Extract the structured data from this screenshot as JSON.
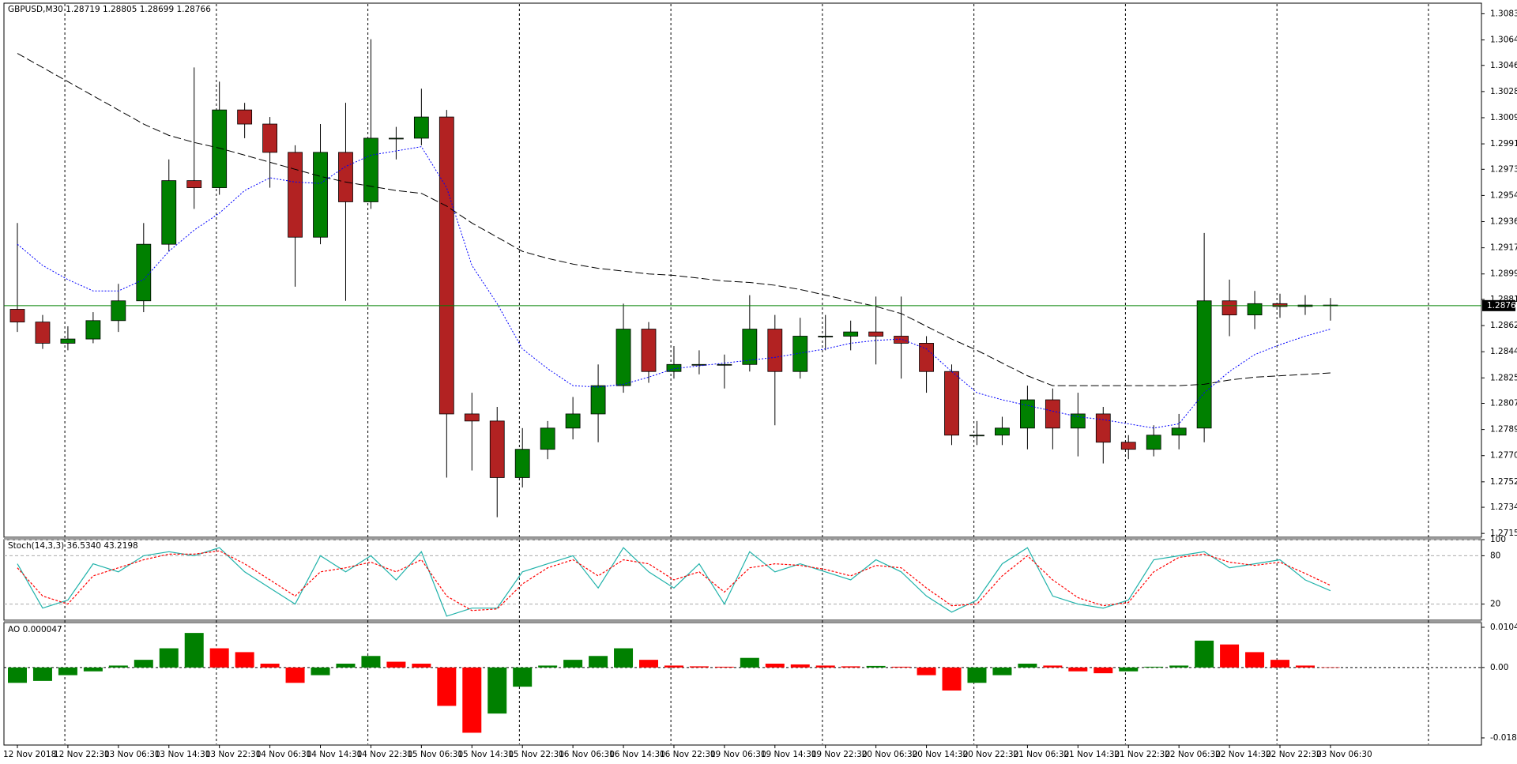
{
  "chart_data": [
    {
      "type": "candlestick",
      "title": "GBPUSD,M30  1.28719 1.28805 1.28699 1.28766",
      "ylim": [
        1.27128,
        1.30905
      ],
      "yticks": [
        {
          "value": 1.3083,
          "label": "1.30830"
        },
        {
          "value": 1.30645,
          "label": "1.30645"
        },
        {
          "value": 1.30465,
          "label": "1.30465"
        },
        {
          "value": 1.3028,
          "label": "1.30280"
        },
        {
          "value": 1.30095,
          "label": "1.30095"
        },
        {
          "value": 1.2991,
          "label": "1.29910"
        },
        {
          "value": 1.2973,
          "label": "1.29730"
        },
        {
          "value": 1.29545,
          "label": "1.29545"
        },
        {
          "value": 1.2936,
          "label": "1.29360"
        },
        {
          "value": 1.29175,
          "label": "1.29175"
        },
        {
          "value": 1.2899,
          "label": "1.28990"
        },
        {
          "value": 1.2881,
          "label": "1.28810"
        },
        {
          "value": 1.28625,
          "label": "1.28625"
        },
        {
          "value": 1.2844,
          "label": "1.28440"
        },
        {
          "value": 1.28255,
          "label": "1.28255"
        },
        {
          "value": 1.28075,
          "label": "1.28075"
        },
        {
          "value": 1.2789,
          "label": "1.27890"
        },
        {
          "value": 1.27705,
          "label": "1.27705"
        },
        {
          "value": 1.2752,
          "label": "1.27520"
        },
        {
          "value": 1.2734,
          "label": "1.27340"
        },
        {
          "value": 1.27155,
          "label": "1.27155"
        }
      ],
      "last_price": 1.28766,
      "xticks": [
        {
          "value": 0,
          "label": "12 Nov 2018"
        },
        {
          "value": 2,
          "label": "12 Nov 22:30"
        },
        {
          "value": 4,
          "label": "13 Nov 06:30"
        },
        {
          "value": 6,
          "label": "13 Nov 14:30"
        },
        {
          "value": 8,
          "label": "13 Nov 22:30"
        },
        {
          "value": 10,
          "label": "14 Nov 06:30"
        },
        {
          "value": 12,
          "label": "14 Nov 14:30"
        },
        {
          "value": 14,
          "label": "14 Nov 22:30"
        },
        {
          "value": 16,
          "label": "15 Nov 06:30"
        },
        {
          "value": 18,
          "label": "15 Nov 14:30"
        },
        {
          "value": 20,
          "label": "15 Nov 22:30"
        },
        {
          "value": 22,
          "label": "16 Nov 06:30"
        },
        {
          "value": 24,
          "label": "16 Nov 14:30"
        },
        {
          "value": 26,
          "label": "16 Nov 22:30"
        },
        {
          "value": 28,
          "label": "19 Nov 06:30"
        },
        {
          "value": 30,
          "label": "19 Nov 14:30"
        },
        {
          "value": 32,
          "label": "19 Nov 22:30"
        },
        {
          "value": 34,
          "label": "20 Nov 06:30"
        },
        {
          "value": 36,
          "label": "20 Nov 14:30"
        },
        {
          "value": 38,
          "label": "20 Nov 22:30"
        },
        {
          "value": 40,
          "label": "21 Nov 06:30"
        },
        {
          "value": 42,
          "label": "21 Nov 14:30"
        },
        {
          "value": 44,
          "label": "21 Nov 22:30"
        },
        {
          "value": 46,
          "label": "22 Nov 06:30"
        },
        {
          "value": 48,
          "label": "22 Nov 14:30"
        },
        {
          "value": 50,
          "label": "22 Nov 22:30"
        },
        {
          "value": 52,
          "label": "23 Nov 06:30"
        }
      ],
      "up_color": "#008000",
      "down_color": "#b22222",
      "candles": [
        [
          1.2874,
          1.2935,
          1.2858,
          1.2865
        ],
        [
          1.2865,
          1.287,
          1.2846,
          1.285
        ],
        [
          1.285,
          1.2862,
          1.2845,
          1.2853
        ],
        [
          1.2853,
          1.2872,
          1.285,
          1.2866
        ],
        [
          1.2866,
          1.2892,
          1.2858,
          1.288
        ],
        [
          1.288,
          1.2935,
          1.2872,
          1.292
        ],
        [
          1.292,
          1.298,
          1.2915,
          1.2965
        ],
        [
          1.2965,
          1.3045,
          1.2945,
          1.296
        ],
        [
          1.296,
          1.3035,
          1.2955,
          1.3015
        ],
        [
          1.3015,
          1.302,
          1.2995,
          1.3005
        ],
        [
          1.3005,
          1.301,
          1.296,
          1.2985
        ],
        [
          1.2985,
          1.299,
          1.289,
          1.2925
        ],
        [
          1.2925,
          1.3005,
          1.292,
          1.2985
        ],
        [
          1.2985,
          1.302,
          1.288,
          1.295
        ],
        [
          1.295,
          1.3065,
          1.2945,
          1.2995
        ],
        [
          1.2995,
          1.3003,
          1.298,
          1.2995
        ],
        [
          1.2995,
          1.303,
          1.299,
          1.301
        ],
        [
          1.301,
          1.3015,
          1.2755,
          1.28
        ],
        [
          1.28,
          1.2815,
          1.276,
          1.2795
        ],
        [
          1.2795,
          1.2805,
          1.2727,
          1.2755
        ],
        [
          1.2755,
          1.279,
          1.2748,
          1.2775
        ],
        [
          1.2775,
          1.2795,
          1.2768,
          1.279
        ],
        [
          1.279,
          1.2812,
          1.2782,
          1.28
        ],
        [
          1.28,
          1.2835,
          1.278,
          1.282
        ],
        [
          1.282,
          1.2878,
          1.2815,
          1.286
        ],
        [
          1.286,
          1.2865,
          1.2822,
          1.283
        ],
        [
          1.283,
          1.2848,
          1.2825,
          1.2835
        ],
        [
          1.2835,
          1.2845,
          1.2828,
          1.2835
        ],
        [
          1.2835,
          1.2842,
          1.2818,
          1.2835
        ],
        [
          1.2835,
          1.2884,
          1.283,
          1.286
        ],
        [
          1.286,
          1.287,
          1.2792,
          1.283
        ],
        [
          1.283,
          1.2868,
          1.2825,
          1.2855
        ],
        [
          1.2855,
          1.287,
          1.2845,
          1.2855
        ],
        [
          1.2855,
          1.2866,
          1.2845,
          1.2858
        ],
        [
          1.2858,
          1.2883,
          1.2835,
          1.2855
        ],
        [
          1.2855,
          1.2883,
          1.2825,
          1.285
        ],
        [
          1.285,
          1.2855,
          1.2815,
          1.283
        ],
        [
          1.283,
          1.2835,
          1.2778,
          1.2785
        ],
        [
          1.2785,
          1.2795,
          1.2778,
          1.2785
        ],
        [
          1.2785,
          1.2798,
          1.2778,
          1.279
        ],
        [
          1.279,
          1.282,
          1.2775,
          1.281
        ],
        [
          1.281,
          1.2818,
          1.2775,
          1.279
        ],
        [
          1.279,
          1.2815,
          1.277,
          1.28
        ],
        [
          1.28,
          1.2805,
          1.2765,
          1.278
        ],
        [
          1.278,
          1.2785,
          1.2768,
          1.2775
        ],
        [
          1.2775,
          1.2792,
          1.277,
          1.2785
        ],
        [
          1.2785,
          1.28,
          1.2775,
          1.279
        ],
        [
          1.279,
          1.2928,
          1.278,
          1.288
        ],
        [
          1.288,
          1.2895,
          1.2855,
          1.287
        ],
        [
          1.287,
          1.2887,
          1.286,
          1.2878
        ],
        [
          1.2878,
          1.2885,
          1.2868,
          1.2876
        ],
        [
          1.2876,
          1.2884,
          1.287,
          1.2877
        ],
        [
          1.2877,
          1.2882,
          1.2866,
          1.28766
        ]
      ],
      "overlays": [
        {
          "color": "#000000",
          "dash": "10 4",
          "values": [
            1.3055,
            1.3045,
            1.3035,
            1.3025,
            1.3015,
            1.3005,
            1.2997,
            1.2992,
            1.2988,
            1.2983,
            1.2978,
            1.2973,
            1.2968,
            1.2964,
            1.2961,
            1.2958,
            1.2956,
            1.2947,
            1.2935,
            1.2925,
            1.2915,
            1.291,
            1.2906,
            1.2903,
            1.2901,
            1.2899,
            1.2898,
            1.2896,
            1.2894,
            1.2893,
            1.2891,
            1.2888,
            1.2884,
            1.288,
            1.2876,
            1.2871,
            1.2862,
            1.2853,
            1.2845,
            1.2836,
            1.2827,
            1.282,
            1.282,
            1.282,
            1.282,
            1.282,
            1.282,
            1.2821,
            1.2824,
            1.2826,
            1.2827,
            1.2828,
            1.2829
          ]
        },
        {
          "color": "#0000ff",
          "dash": "2 2",
          "values": [
            1.292,
            1.2905,
            1.2895,
            1.2887,
            1.2887,
            1.2895,
            1.2915,
            1.293,
            1.2942,
            1.2958,
            1.2967,
            1.2964,
            1.2963,
            1.2975,
            1.2983,
            1.2986,
            1.2989,
            1.296,
            1.2905,
            1.2878,
            1.2846,
            1.2832,
            1.282,
            1.2819,
            1.2821,
            1.2826,
            1.2832,
            1.2834,
            1.2836,
            1.2838,
            1.284,
            1.2843,
            1.2846,
            1.285,
            1.2852,
            1.2853,
            1.2846,
            1.283,
            1.2815,
            1.281,
            1.2806,
            1.2802,
            1.2798,
            1.2796,
            1.2793,
            1.279,
            1.2793,
            1.2815,
            1.283,
            1.2842,
            1.2849,
            1.2855,
            1.286
          ]
        }
      ]
    },
    {
      "type": "line",
      "title": "Stoch(14,3,3) 36.5340 43.2198",
      "ylim": [
        0,
        100
      ],
      "yticks": [
        100,
        80,
        20
      ],
      "series": [
        {
          "color": "#20b2aa",
          "values": [
            70,
            15,
            25,
            70,
            60,
            80,
            85,
            80,
            90,
            60,
            40,
            20,
            80,
            60,
            80,
            50,
            85,
            5,
            15,
            15,
            60,
            70,
            80,
            40,
            90,
            60,
            40,
            70,
            20,
            85,
            60,
            70,
            60,
            50,
            75,
            60,
            30,
            10,
            25,
            70,
            90,
            30,
            20,
            15,
            25,
            75,
            80,
            85,
            65,
            70,
            75,
            50,
            36.534
          ]
        },
        {
          "color": "#ff0000",
          "dash": "3 2",
          "values": [
            65,
            30,
            20,
            55,
            65,
            75,
            82,
            82,
            86,
            70,
            50,
            30,
            60,
            65,
            72,
            60,
            75,
            30,
            12,
            14,
            45,
            65,
            75,
            55,
            75,
            70,
            50,
            60,
            35,
            65,
            70,
            68,
            63,
            55,
            68,
            65,
            40,
            18,
            20,
            55,
            80,
            50,
            28,
            18,
            22,
            60,
            78,
            82,
            72,
            68,
            72,
            58,
            43.2198
          ]
        }
      ]
    },
    {
      "type": "bar",
      "title": "AO 0.000047",
      "ylim": [
        -0.0202,
        0.0117
      ],
      "yticks": [
        0.010473,
        {
          "value": 0,
          "label": "0.00"
        },
        -0.018339
      ],
      "up_color": "#008000",
      "down_color": "#ff0000",
      "values": [
        -0.004,
        -0.0035,
        -0.002,
        -0.001,
        0.0005,
        0.002,
        0.005,
        0.009,
        0.005,
        0.004,
        0.001,
        -0.004,
        -0.002,
        0.001,
        0.003,
        0.0015,
        0.001,
        -0.01,
        -0.017,
        -0.012,
        -0.005,
        0.0005,
        0.002,
        0.003,
        0.005,
        0.002,
        0.0005,
        0.0003,
        0.0002,
        0.0025,
        0.001,
        0.0008,
        0.0005,
        0.0003,
        0.0004,
        0.0002,
        -0.002,
        -0.006,
        -0.004,
        -0.002,
        0.001,
        0.0005,
        -0.001,
        -0.0015,
        -0.001,
        0.0002,
        0.0005,
        0.007,
        0.006,
        0.004,
        0.002,
        0.0005,
        4.7e-05
      ]
    }
  ]
}
